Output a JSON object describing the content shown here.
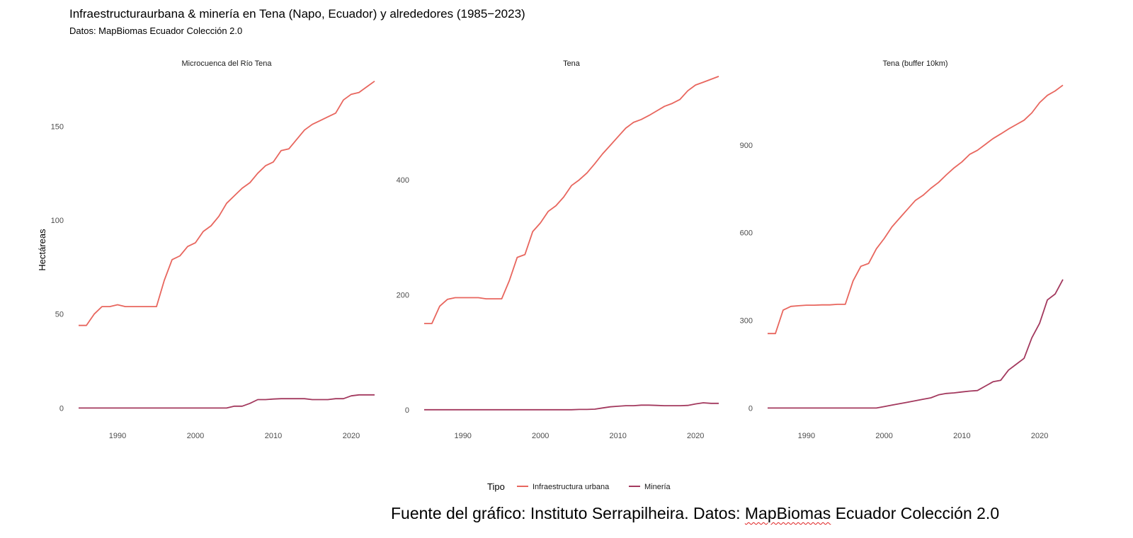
{
  "title": "Infraestructuraurbana & minería en Tena (Napo, Ecuador) y alrededores (1985−2023)",
  "subtitle": "Datos: MapBiomas Ecuador Colección 2.0",
  "source_note": {
    "before": "Fuente del gráfico: Instituto Serrapilheira. Datos: ",
    "underlined": "MapBiomas",
    "after": " Ecuador Colección 2.0"
  },
  "colors": {
    "urbana": "#e8665e",
    "mineria": "#a3395e",
    "text": "#4d4d4d"
  },
  "chart_data": {
    "type": "line",
    "ylabel": "Hectáreas",
    "legend": {
      "title": "Tipo",
      "position": "bottom",
      "entries": [
        "Infraestructura urbana",
        "Minería"
      ]
    },
    "x": [
      1985,
      1986,
      1987,
      1988,
      1989,
      1990,
      1991,
      1992,
      1993,
      1994,
      1995,
      1996,
      1997,
      1998,
      1999,
      2000,
      2001,
      2002,
      2003,
      2004,
      2005,
      2006,
      2007,
      2008,
      2009,
      2010,
      2011,
      2012,
      2013,
      2014,
      2015,
      2016,
      2017,
      2018,
      2019,
      2020,
      2021,
      2022,
      2023
    ],
    "xlim": [
      1984,
      2024
    ],
    "xticks": [
      1990,
      2000,
      2010,
      2020
    ],
    "panels": [
      {
        "title": "Microcuenca del Río Tena",
        "ylim": [
          -7,
          175
        ],
        "yticks": [
          0,
          50,
          100,
          150
        ],
        "series": [
          {
            "name": "Infraestructura urbana",
            "values": [
              44,
              44,
              50,
              54,
              54,
              55,
              54,
              54,
              54,
              54,
              54,
              68,
              79,
              81,
              86,
              88,
              94,
              97,
              102,
              109,
              113,
              117,
              120,
              125,
              129,
              131,
              137,
              138,
              143,
              148,
              151,
              153,
              155,
              157,
              164,
              167,
              168,
              171,
              174
            ]
          },
          {
            "name": "Minería",
            "values": [
              0,
              0,
              0,
              0,
              0,
              0,
              0,
              0,
              0,
              0,
              0,
              0,
              0,
              0,
              0,
              0,
              0,
              0,
              0,
              0,
              1,
              1,
              2.5,
              4.5,
              4.5,
              4.8,
              5,
              5,
              5,
              5,
              4.5,
              4.5,
              4.5,
              5,
              5,
              6.5,
              7,
              7,
              7
            ]
          }
        ]
      },
      {
        "title": "Tena",
        "ylim": [
          -20,
          575
        ],
        "yticks": [
          0,
          200,
          400
        ],
        "series": [
          {
            "name": "Infraestructura urbana",
            "values": [
              150,
              150,
              180,
              192,
              195,
              195,
              195,
              195,
              193,
              193,
              193,
              225,
              265,
              270,
              310,
              325,
              345,
              355,
              370,
              390,
              400,
              412,
              428,
              445,
              460,
              475,
              490,
              500,
              505,
              512,
              520,
              528,
              533,
              540,
              555,
              565,
              570,
              575,
              580
            ]
          },
          {
            "name": "Minería",
            "values": [
              0,
              0,
              0,
              0,
              0,
              0,
              0,
              0,
              0,
              0,
              0,
              0,
              0,
              0,
              0,
              0,
              0,
              0,
              0,
              0,
              0.5,
              0.5,
              1,
              3,
              5,
              6,
              7,
              7,
              8,
              8,
              7.5,
              7,
              7,
              7,
              7.5,
              10,
              12,
              11,
              11
            ]
          }
        ]
      },
      {
        "title": "Tena (buffer 10km)",
        "ylim": [
          -45,
          1125
        ],
        "yticks": [
          0,
          300,
          600,
          900
        ],
        "series": [
          {
            "name": "Infraestructura urbana",
            "values": [
              255,
              255,
              335,
              348,
              350,
              352,
              352,
              353,
              353,
              355,
              355,
              435,
              485,
              495,
              545,
              580,
              620,
              650,
              680,
              710,
              728,
              752,
              772,
              798,
              822,
              842,
              868,
              882,
              902,
              922,
              938,
              955,
              970,
              985,
              1010,
              1045,
              1070,
              1085,
              1105
            ]
          },
          {
            "name": "Minería",
            "values": [
              0,
              0,
              0,
              0,
              0,
              0,
              0,
              0,
              0,
              0,
              0,
              0,
              0,
              0,
              0,
              5,
              10,
              15,
              20,
              25,
              30,
              35,
              45,
              50,
              52,
              55,
              58,
              60,
              75,
              90,
              95,
              130,
              150,
              170,
              240,
              290,
              370,
              390,
              440
            ]
          }
        ]
      }
    ]
  }
}
